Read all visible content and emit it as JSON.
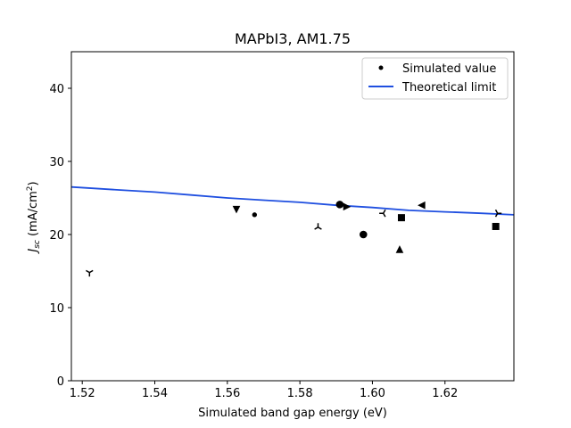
{
  "chart_data": {
    "type": "scatter",
    "title": "MAPbI3, AM1.75",
    "xlabel": "Simulated band gap energy (eV)",
    "ylabel_main": "J",
    "ylabel_sub": "sc",
    "ylabel_unit_pre": " (mA/cm",
    "ylabel_unit_sup": "2",
    "ylabel_unit_post": ")",
    "xlim": [
      1.517,
      1.639
    ],
    "ylim": [
      0,
      45
    ],
    "xticks": [
      1.52,
      1.54,
      1.56,
      1.58,
      1.6,
      1.62
    ],
    "xtick_labels": [
      "1.52",
      "1.54",
      "1.56",
      "1.58",
      "1.60",
      "1.62"
    ],
    "yticks": [
      0,
      10,
      20,
      30,
      40
    ],
    "ytick_labels": [
      "0",
      "10",
      "20",
      "30",
      "40"
    ],
    "grid": false,
    "legend_position": "top-right",
    "legend": [
      {
        "label": "Simulated value",
        "kind": "marker"
      },
      {
        "label": "Theoretical limit",
        "kind": "line"
      }
    ],
    "colors": {
      "points": "#000000",
      "limit_line": "#1f4fe0"
    },
    "series": [
      {
        "name": "Simulated value",
        "points": [
          {
            "x": 1.522,
            "y": 14.8,
            "marker": "tri_down"
          },
          {
            "x": 1.5625,
            "y": 23.4,
            "marker": "triangle_down"
          },
          {
            "x": 1.5675,
            "y": 22.7,
            "marker": "point"
          },
          {
            "x": 1.585,
            "y": 21.0,
            "marker": "tri_up"
          },
          {
            "x": 1.591,
            "y": 24.1,
            "marker": "circle"
          },
          {
            "x": 1.593,
            "y": 23.8,
            "marker": "triangle_right"
          },
          {
            "x": 1.5975,
            "y": 20.0,
            "marker": "circle"
          },
          {
            "x": 1.603,
            "y": 22.9,
            "marker": "tri_left"
          },
          {
            "x": 1.6075,
            "y": 18.0,
            "marker": "triangle_up"
          },
          {
            "x": 1.608,
            "y": 22.3,
            "marker": "square"
          },
          {
            "x": 1.6135,
            "y": 24.0,
            "marker": "triangle_left"
          },
          {
            "x": 1.634,
            "y": 21.1,
            "marker": "square"
          },
          {
            "x": 1.6345,
            "y": 22.9,
            "marker": "tri_right"
          }
        ]
      },
      {
        "name": "Theoretical limit",
        "x": [
          1.517,
          1.53,
          1.54,
          1.55,
          1.56,
          1.57,
          1.58,
          1.59,
          1.6,
          1.61,
          1.62,
          1.63,
          1.639
        ],
        "y": [
          26.5,
          26.1,
          25.8,
          25.4,
          25.0,
          24.7,
          24.4,
          24.0,
          23.7,
          23.3,
          23.1,
          22.9,
          22.7
        ]
      }
    ]
  }
}
